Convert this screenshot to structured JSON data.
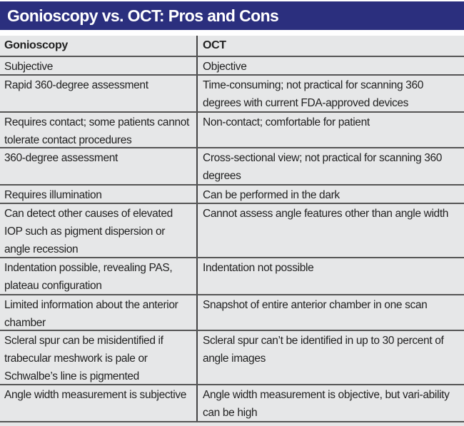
{
  "title": "Gonioscopy vs. OCT: Pros and Cons",
  "table": {
    "headers": [
      "Gonioscopy",
      "OCT"
    ],
    "rows": [
      [
        "Subjective",
        "Objective"
      ],
      [
        "Rapid 360-degree assessment",
        "Time-consuming; not practical for scanning 360 degrees with current FDA-approved devices"
      ],
      [
        "Requires contact; some patients cannot tolerate contact procedures",
        "Non-contact; comfortable for patient"
      ],
      [
        "360-degree assessment",
        "Cross-sectional view; not practical for scanning 360 degrees"
      ],
      [
        "Requires illumination",
        "Can be performed in the dark"
      ],
      [
        "Can detect other causes of elevated IOP such as pigment dispersion or angle recession",
        "Cannot assess angle features other than angle width"
      ],
      [
        "Indentation possible, revealing PAS, plateau configuration",
        "Indentation not possible"
      ],
      [
        "Limited information about the anterior chamber",
        "Snapshot of entire anterior chamber in one scan"
      ],
      [
        "Scleral spur can be misidentified if trabecular meshwork is pale or Schwalbe’s line is pigmented",
        "Scleral spur can’t be identified in up to 30 percent of angle images"
      ],
      [
        "Angle width measurement is subjective",
        "Angle width measurement is objective, but vari-ability can be high"
      ]
    ]
  }
}
